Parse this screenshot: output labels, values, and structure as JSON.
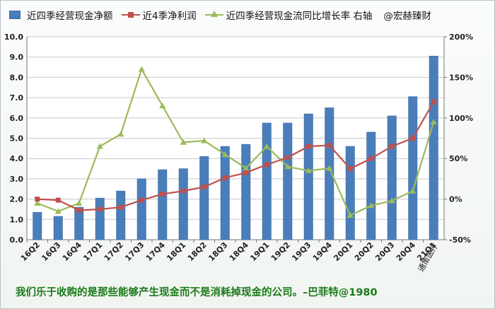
{
  "chart_data": {
    "type": "bar",
    "categories": [
      "16Q2",
      "16Q3",
      "16Q4",
      "17Q1",
      "17Q2",
      "17Q3",
      "17Q4",
      "18Q1",
      "18Q2",
      "18Q3",
      "18Q4",
      "19Q1",
      "19Q2",
      "19Q3",
      "19Q4",
      "20Q1",
      "20Q2",
      "20Q3",
      "20Q4",
      "21Q1"
    ],
    "series": [
      {
        "name": "近四季经营现金净额",
        "kind": "bar",
        "axis": "left",
        "color": "#4a7ebb",
        "values": [
          1.35,
          1.15,
          1.6,
          2.05,
          2.4,
          3.0,
          3.45,
          3.5,
          4.1,
          4.6,
          4.7,
          5.75,
          5.75,
          6.2,
          6.5,
          4.6,
          5.3,
          6.1,
          7.05,
          9.05
        ]
      },
      {
        "name": "近4季净利润",
        "kind": "line",
        "axis": "left",
        "color": "#c0504d",
        "values": [
          2.0,
          1.95,
          1.45,
          1.5,
          1.6,
          1.95,
          2.25,
          2.4,
          2.6,
          3.05,
          3.3,
          3.7,
          4.05,
          4.6,
          4.65,
          3.5,
          4.0,
          4.6,
          5.0,
          6.8
        ]
      },
      {
        "name": "近四季经营现金流同比增长率 右轴",
        "kind": "line",
        "axis": "right",
        "color": "#9bbb59",
        "values": [
          -5,
          -15,
          -5,
          65,
          80,
          160,
          115,
          70,
          72,
          55,
          38,
          65,
          40,
          35,
          38,
          -20,
          -8,
          -2,
          10,
          95
        ]
      }
    ],
    "y_left": {
      "min": 0,
      "max": 10,
      "step": 1,
      "tick_labels": [
        "0.0",
        "1.0",
        "2.0",
        "3.0",
        "4.0",
        "5.0",
        "6.0",
        "7.0",
        "8.0",
        "9.0",
        "10.0"
      ]
    },
    "y_right": {
      "min": -50,
      "max": 200,
      "step": 50,
      "tick_labels": [
        "-50%",
        "0%",
        "50%",
        "100%",
        "150%",
        "200%"
      ]
    },
    "grid": "horizontal",
    "legend": "top",
    "x_annotation": "通策医疗"
  },
  "legend": {
    "bar_label": "近四季经营现金净额",
    "profit_label": "近4季净利润",
    "growth_label": "近四季经营现金流同比增长率 右轴",
    "brand": "@宏赫臻财"
  },
  "footer_quote": "我们乐于收购的是那些能够产生现金而不是消耗掉现金的公司。–巴菲特@1980",
  "colors": {
    "bar": "#4a7ebb",
    "profit": "#c0504d",
    "growth": "#9bbb59",
    "quote": "#1a7a1a"
  }
}
